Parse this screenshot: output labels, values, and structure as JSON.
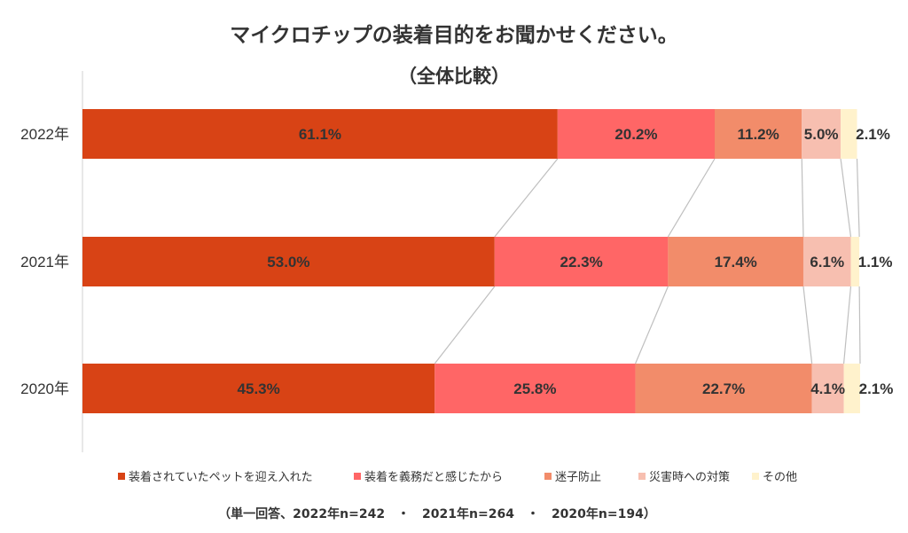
{
  "chart_data": {
    "type": "bar",
    "orientation": "horizontal",
    "stacked": "100%",
    "title": "マイクロチップの装着目的をお聞かせください。",
    "subtitle": "（全体比較）",
    "categories": [
      "2022年",
      "2021年",
      "2020年"
    ],
    "series": [
      {
        "name": "装着されていたペットを迎え入れた",
        "color": "#D84315",
        "values": [
          61.1,
          53.0,
          45.3
        ],
        "labels": [
          "61.1%",
          "53.0%",
          "45.3%"
        ]
      },
      {
        "name": "装着を義務だと感じたから",
        "color": "#FF6666",
        "values": [
          20.2,
          22.3,
          25.8
        ],
        "labels": [
          "20.2%",
          "22.3%",
          "25.8%"
        ]
      },
      {
        "name": "迷子防止",
        "color": "#F28C6A",
        "values": [
          11.2,
          17.4,
          22.7
        ],
        "labels": [
          "11.2%",
          "17.4%",
          "22.7%"
        ]
      },
      {
        "name": "災害時への対策",
        "color": "#F7BFB0",
        "values": [
          5.0,
          6.1,
          4.1
        ],
        "labels": [
          "5.0%",
          "6.1%",
          "4.1%"
        ]
      },
      {
        "name": "その他",
        "color": "#FFF2CC",
        "values": [
          2.1,
          1.1,
          2.1
        ],
        "labels": [
          "2.1%",
          "1.1%",
          "2.1%"
        ]
      }
    ],
    "series_lines": true,
    "legend_position": "bottom",
    "grid": false,
    "note": "（単一回答、2022年n=242　・　2021年n=264　・　2020年n=194）"
  }
}
